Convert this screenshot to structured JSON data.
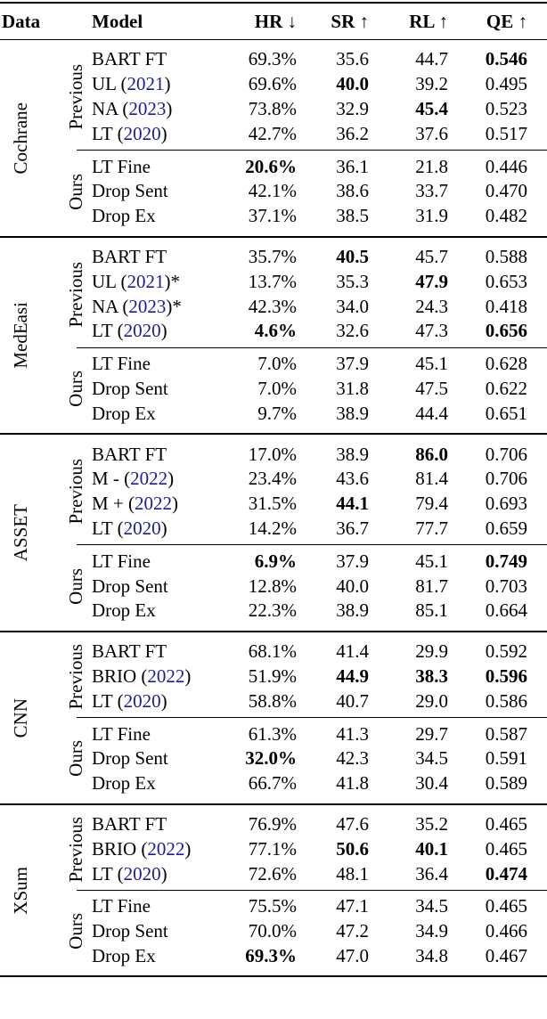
{
  "accent_link_color": "#1b1b9e",
  "table": {
    "headers": {
      "data": "Data",
      "model": "Model",
      "hr": "HR ↓",
      "sr": "SR ↑",
      "rl": "RL ↑",
      "qe": "QE ↑"
    },
    "sections": [
      {
        "dataset": "Cochrane",
        "groups": [
          {
            "label": "Previous",
            "rows": [
              {
                "model_prefix": "BART FT",
                "model_year": "",
                "model_suffix": "",
                "hr": "69.3%",
                "sr": "35.6",
                "rl": "44.7",
                "qe": "0.546",
                "bold": [
                  "qe"
                ]
              },
              {
                "model_prefix": "UL (",
                "model_year": "2021",
                "model_suffix": ")",
                "hr": "69.6%",
                "sr": "40.0",
                "rl": "39.2",
                "qe": "0.495",
                "bold": [
                  "sr"
                ]
              },
              {
                "model_prefix": "NA (",
                "model_year": "2023",
                "model_suffix": ")",
                "hr": "73.8%",
                "sr": "32.9",
                "rl": "45.4",
                "qe": "0.523",
                "bold": [
                  "rl"
                ]
              },
              {
                "model_prefix": "LT (",
                "model_year": "2020",
                "model_suffix": ")",
                "hr": "42.7%",
                "sr": "36.2",
                "rl": "37.6",
                "qe": "0.517",
                "bold": []
              }
            ]
          },
          {
            "label": "Ours",
            "rows": [
              {
                "model_prefix": "LT Fine",
                "model_year": "",
                "model_suffix": "",
                "hr": "20.6%",
                "sr": "36.1",
                "rl": "21.8",
                "qe": "0.446",
                "bold": [
                  "hr"
                ]
              },
              {
                "model_prefix": "Drop Sent",
                "model_year": "",
                "model_suffix": "",
                "hr": "42.1%",
                "sr": "38.6",
                "rl": "33.7",
                "qe": "0.470",
                "bold": []
              },
              {
                "model_prefix": "Drop Ex",
                "model_year": "",
                "model_suffix": "",
                "hr": "37.1%",
                "sr": "38.5",
                "rl": "31.9",
                "qe": "0.482",
                "bold": []
              }
            ]
          }
        ]
      },
      {
        "dataset": "MedEasi",
        "groups": [
          {
            "label": "Previous",
            "rows": [
              {
                "model_prefix": "BART FT",
                "model_year": "",
                "model_suffix": "",
                "hr": "35.7%",
                "sr": "40.5",
                "rl": "45.7",
                "qe": "0.588",
                "bold": [
                  "sr"
                ]
              },
              {
                "model_prefix": "UL (",
                "model_year": "2021",
                "model_suffix": ")*",
                "hr": "13.7%",
                "sr": "35.3",
                "rl": "47.9",
                "qe": "0.653",
                "bold": [
                  "rl"
                ]
              },
              {
                "model_prefix": "NA (",
                "model_year": "2023",
                "model_suffix": ")*",
                "hr": "42.3%",
                "sr": "34.0",
                "rl": "24.3",
                "qe": "0.418",
                "bold": []
              },
              {
                "model_prefix": "LT (",
                "model_year": "2020",
                "model_suffix": ")",
                "hr": "4.6%",
                "sr": "32.6",
                "rl": "47.3",
                "qe": "0.656",
                "bold": [
                  "hr",
                  "qe"
                ]
              }
            ]
          },
          {
            "label": "Ours",
            "rows": [
              {
                "model_prefix": "LT Fine",
                "model_year": "",
                "model_suffix": "",
                "hr": "7.0%",
                "sr": "37.9",
                "rl": "45.1",
                "qe": "0.628",
                "bold": []
              },
              {
                "model_prefix": "Drop Sent",
                "model_year": "",
                "model_suffix": "",
                "hr": "7.0%",
                "sr": "31.8",
                "rl": "47.5",
                "qe": "0.622",
                "bold": []
              },
              {
                "model_prefix": "Drop Ex",
                "model_year": "",
                "model_suffix": "",
                "hr": "9.7%",
                "sr": "38.9",
                "rl": "44.4",
                "qe": "0.651",
                "bold": []
              }
            ]
          }
        ]
      },
      {
        "dataset": "ASSET",
        "groups": [
          {
            "label": "Previous",
            "rows": [
              {
                "model_prefix": "BART FT",
                "model_year": "",
                "model_suffix": "",
                "hr": "17.0%",
                "sr": "38.9",
                "rl": "86.0",
                "qe": "0.706",
                "bold": [
                  "rl"
                ]
              },
              {
                "model_prefix": "M - (",
                "model_year": "2022",
                "model_suffix": ")",
                "hr": "23.4%",
                "sr": "43.6",
                "rl": "81.4",
                "qe": "0.706",
                "bold": []
              },
              {
                "model_prefix": "M + (",
                "model_year": "2022",
                "model_suffix": ")",
                "hr": "31.5%",
                "sr": "44.1",
                "rl": "79.4",
                "qe": "0.693",
                "bold": [
                  "sr"
                ]
              },
              {
                "model_prefix": "LT (",
                "model_year": "2020",
                "model_suffix": ")",
                "hr": "14.2%",
                "sr": "36.7",
                "rl": "77.7",
                "qe": "0.659",
                "bold": []
              }
            ]
          },
          {
            "label": "Ours",
            "rows": [
              {
                "model_prefix": "LT Fine",
                "model_year": "",
                "model_suffix": "",
                "hr": "6.9%",
                "sr": "37.9",
                "rl": "45.1",
                "qe": "0.749",
                "bold": [
                  "hr",
                  "qe"
                ]
              },
              {
                "model_prefix": "Drop Sent",
                "model_year": "",
                "model_suffix": "",
                "hr": "12.8%",
                "sr": "40.0",
                "rl": "81.7",
                "qe": "0.703",
                "bold": []
              },
              {
                "model_prefix": "Drop Ex",
                "model_year": "",
                "model_suffix": "",
                "hr": "22.3%",
                "sr": "38.9",
                "rl": "85.1",
                "qe": "0.664",
                "bold": []
              }
            ]
          }
        ]
      },
      {
        "dataset": "CNN",
        "groups": [
          {
            "label": "Previous",
            "rows": [
              {
                "model_prefix": "BART FT",
                "model_year": "",
                "model_suffix": "",
                "hr": "68.1%",
                "sr": "41.4",
                "rl": "29.9",
                "qe": "0.592",
                "bold": []
              },
              {
                "model_prefix": "BRIO (",
                "model_year": "2022",
                "model_suffix": ")",
                "hr": "51.9%",
                "sr": "44.9",
                "rl": "38.3",
                "qe": "0.596",
                "bold": [
                  "sr",
                  "rl",
                  "qe"
                ]
              },
              {
                "model_prefix": "LT (",
                "model_year": "2020",
                "model_suffix": ")",
                "hr": "58.8%",
                "sr": "40.7",
                "rl": "29.0",
                "qe": "0.586",
                "bold": []
              }
            ]
          },
          {
            "label": "Ours",
            "rows": [
              {
                "model_prefix": "LT Fine",
                "model_year": "",
                "model_suffix": "",
                "hr": "61.3%",
                "sr": "41.3",
                "rl": "29.7",
                "qe": "0.587",
                "bold": []
              },
              {
                "model_prefix": "Drop Sent",
                "model_year": "",
                "model_suffix": "",
                "hr": "32.0%",
                "sr": "42.3",
                "rl": "34.5",
                "qe": "0.591",
                "bold": [
                  "hr"
                ]
              },
              {
                "model_prefix": "Drop Ex",
                "model_year": "",
                "model_suffix": "",
                "hr": "66.7%",
                "sr": "41.8",
                "rl": "30.4",
                "qe": "0.589",
                "bold": []
              }
            ]
          }
        ]
      },
      {
        "dataset": "XSum",
        "groups": [
          {
            "label": "Previous",
            "rows": [
              {
                "model_prefix": "BART FT",
                "model_year": "",
                "model_suffix": "",
                "hr": "76.9%",
                "sr": "47.6",
                "rl": "35.2",
                "qe": "0.465",
                "bold": []
              },
              {
                "model_prefix": "BRIO (",
                "model_year": "2022",
                "model_suffix": ")",
                "hr": "77.1%",
                "sr": "50.6",
                "rl": "40.1",
                "qe": "0.465",
                "bold": [
                  "sr",
                  "rl"
                ]
              },
              {
                "model_prefix": "LT (",
                "model_year": "2020",
                "model_suffix": ")",
                "hr": "72.6%",
                "sr": "48.1",
                "rl": "36.4",
                "qe": "0.474",
                "bold": [
                  "qe"
                ]
              }
            ]
          },
          {
            "label": "Ours",
            "rows": [
              {
                "model_prefix": "LT Fine",
                "model_year": "",
                "model_suffix": "",
                "hr": "75.5%",
                "sr": "47.1",
                "rl": "34.5",
                "qe": "0.465",
                "bold": []
              },
              {
                "model_prefix": "Drop Sent",
                "model_year": "",
                "model_suffix": "",
                "hr": "70.0%",
                "sr": "47.2",
                "rl": "34.9",
                "qe": "0.466",
                "bold": []
              },
              {
                "model_prefix": "Drop Ex",
                "model_year": "",
                "model_suffix": "",
                "hr": "69.3%",
                "sr": "47.0",
                "rl": "34.8",
                "qe": "0.467",
                "bold": [
                  "hr"
                ]
              }
            ]
          }
        ]
      }
    ]
  }
}
